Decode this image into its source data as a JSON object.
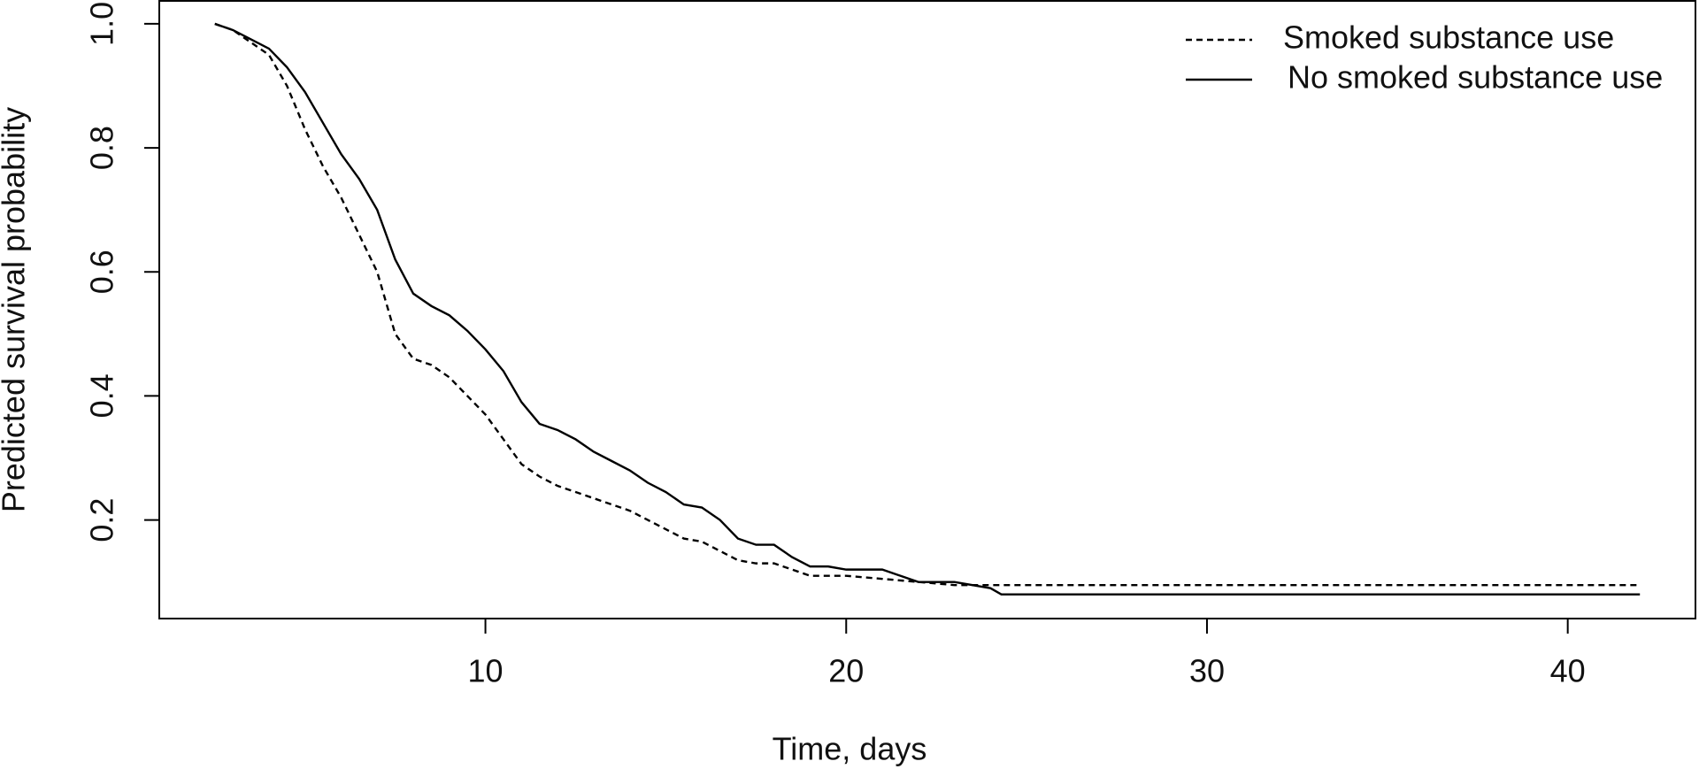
{
  "chart_data": {
    "type": "line",
    "xlabel": "Time, days",
    "ylabel": "Predicted survival probability",
    "xlim": [
      0.96,
      43.54
    ],
    "ylim": [
      0.041,
      1.037
    ],
    "xticks": [
      10,
      20,
      30,
      40
    ],
    "yticks": [
      0.2,
      0.4,
      0.6,
      0.8,
      {
        "value": 1.0,
        "label": "1.0"
      }
    ],
    "legend": "topright",
    "series": [
      {
        "name": "Smoked substance use",
        "color": "#000000",
        "dash": true,
        "x": [
          2.5,
          3.0,
          3.5,
          4.0,
          4.5,
          5.0,
          5.5,
          6.0,
          6.5,
          7.0,
          7.5,
          8.0,
          8.5,
          9.0,
          9.5,
          10.0,
          10.5,
          11.0,
          11.5,
          12.0,
          12.5,
          13.0,
          13.5,
          14.0,
          14.5,
          15.0,
          15.5,
          16.0,
          16.5,
          17.0,
          17.5,
          18.0,
          18.5,
          19.0,
          20.0,
          21.0,
          22.0,
          23.0,
          24.0,
          42.0
        ],
        "values": [
          1.0,
          0.99,
          0.97,
          0.95,
          0.9,
          0.83,
          0.77,
          0.72,
          0.66,
          0.6,
          0.5,
          0.46,
          0.45,
          0.43,
          0.4,
          0.37,
          0.33,
          0.29,
          0.27,
          0.255,
          0.245,
          0.235,
          0.225,
          0.215,
          0.2,
          0.185,
          0.17,
          0.165,
          0.15,
          0.135,
          0.13,
          0.13,
          0.12,
          0.11,
          0.11,
          0.105,
          0.1,
          0.095,
          0.095,
          0.095
        ]
      },
      {
        "name": "No smoked substance use",
        "color": "#000000",
        "dash": false,
        "x": [
          2.5,
          3.0,
          3.5,
          4.0,
          4.5,
          5.0,
          5.5,
          6.0,
          6.5,
          7.0,
          7.5,
          8.0,
          8.5,
          9.0,
          9.5,
          10.0,
          10.5,
          11.0,
          11.5,
          12.0,
          12.5,
          13.0,
          13.5,
          14.0,
          14.5,
          15.0,
          15.5,
          16.0,
          16.5,
          17.0,
          17.5,
          18.0,
          18.5,
          19.0,
          19.5,
          20.0,
          21.0,
          21.5,
          22.0,
          23.0,
          24.0,
          24.3,
          42.0
        ],
        "values": [
          1.0,
          0.99,
          0.975,
          0.96,
          0.93,
          0.89,
          0.84,
          0.79,
          0.75,
          0.7,
          0.62,
          0.565,
          0.545,
          0.53,
          0.505,
          0.475,
          0.44,
          0.39,
          0.355,
          0.345,
          0.33,
          0.31,
          0.295,
          0.28,
          0.26,
          0.245,
          0.225,
          0.22,
          0.2,
          0.17,
          0.16,
          0.16,
          0.14,
          0.125,
          0.125,
          0.12,
          0.12,
          0.11,
          0.1,
          0.1,
          0.09,
          0.08,
          0.08
        ]
      }
    ]
  }
}
